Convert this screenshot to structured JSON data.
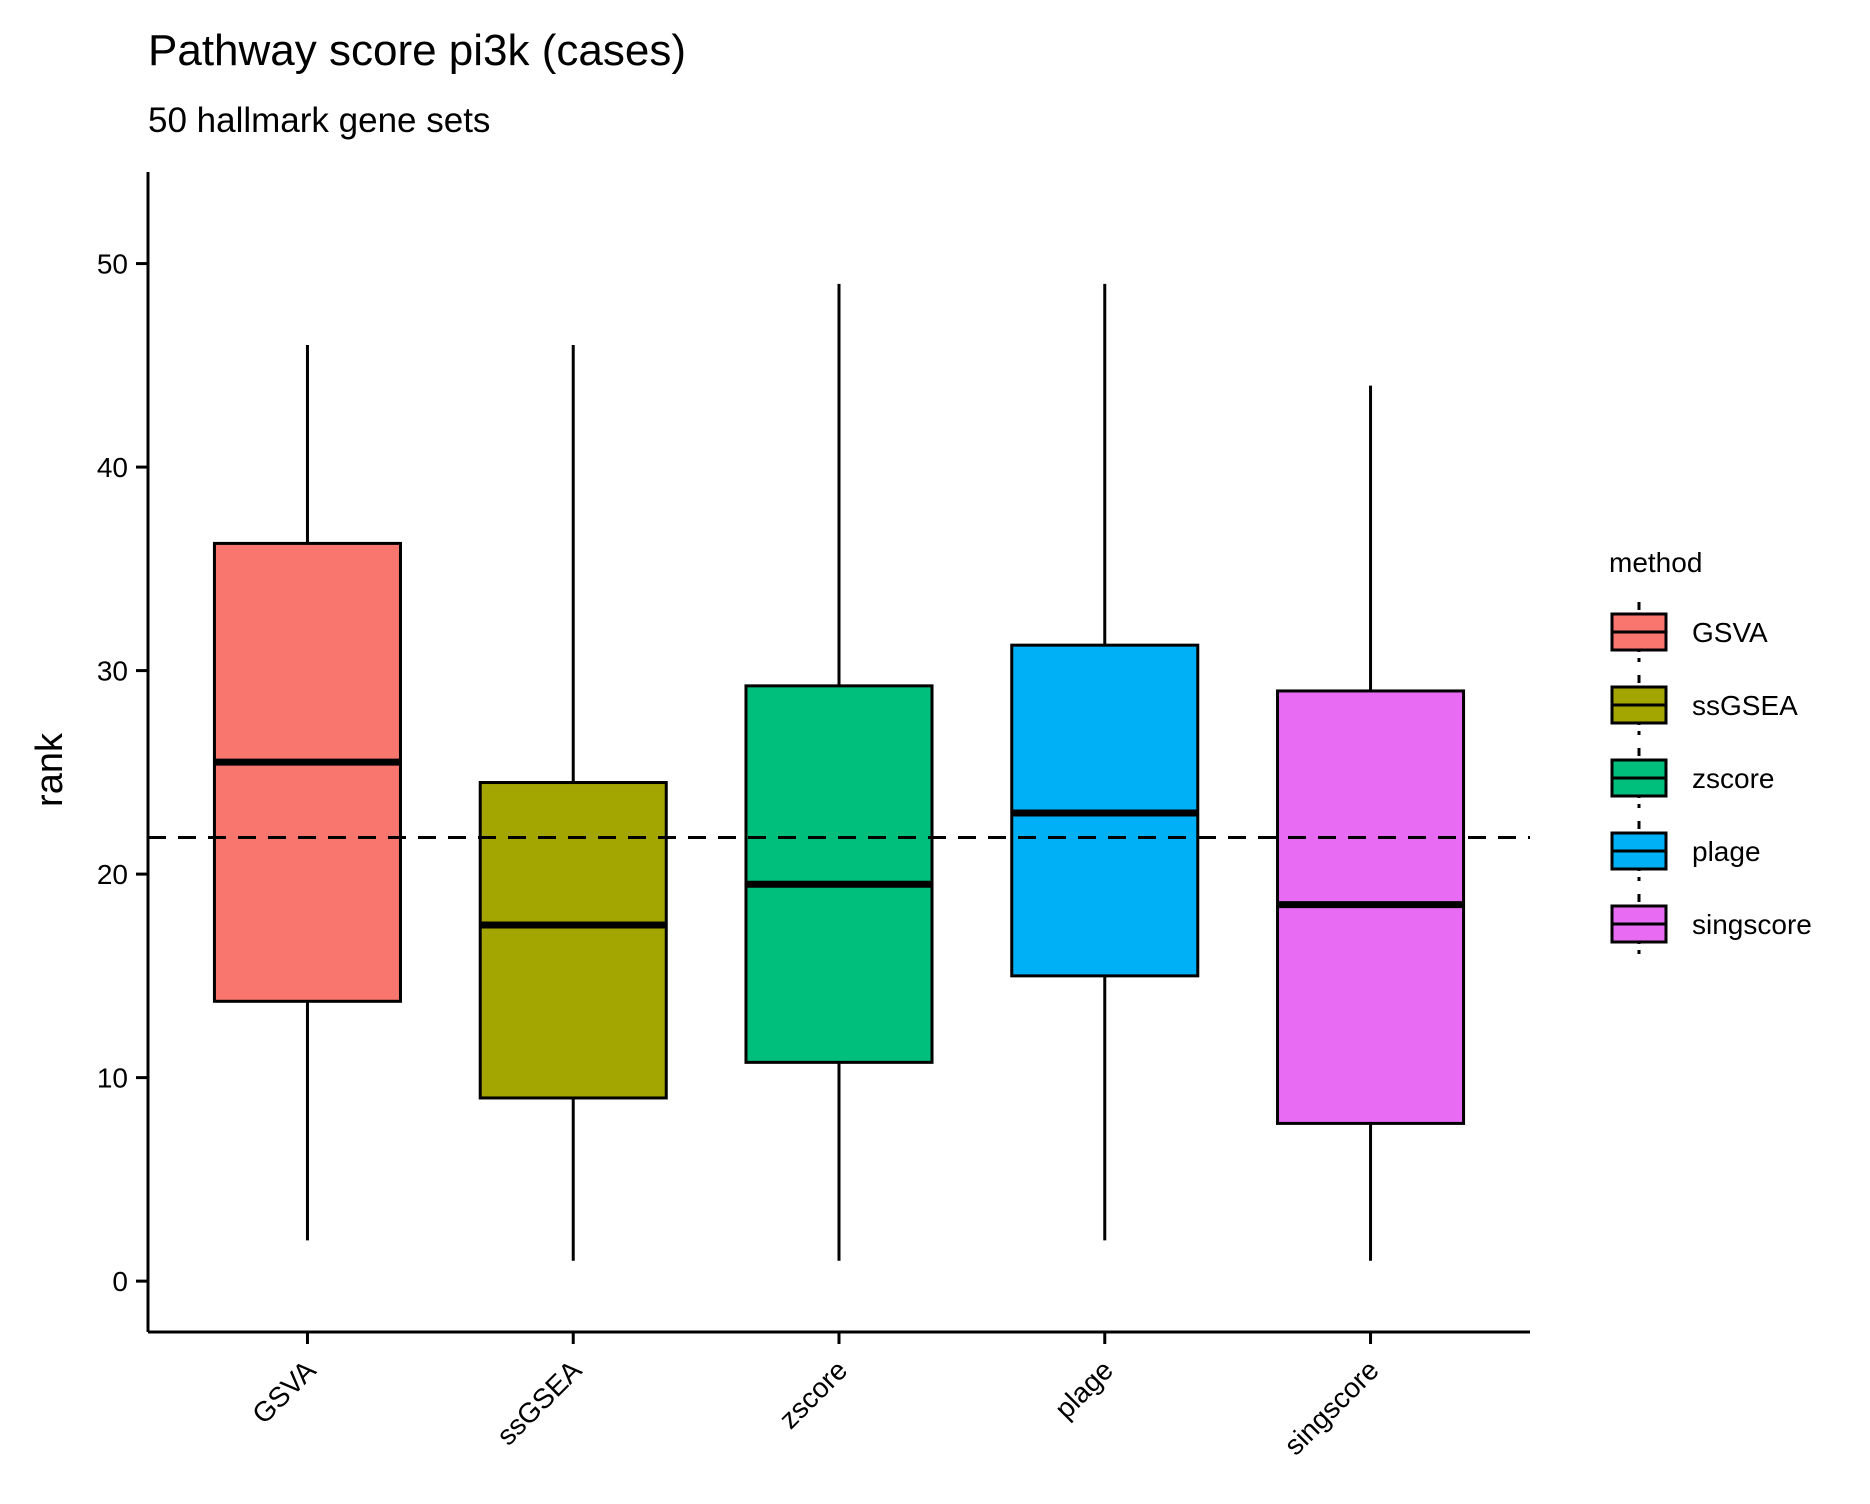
{
  "chart_data": {
    "type": "boxplot",
    "title": "Pathway score pi3k (cases)",
    "subtitle": "50 hallmark gene sets",
    "ylabel": "rank",
    "xlabel": "",
    "ylim": [
      -2.5,
      54.5
    ],
    "yticks": [
      0,
      10,
      20,
      30,
      40,
      50
    ],
    "grid": false,
    "reference_line": {
      "y": 21.8,
      "style": "dashed"
    },
    "legend": {
      "title": "method",
      "position": "right",
      "entries": [
        "GSVA",
        "ssGSEA",
        "zscore",
        "plage",
        "singscore"
      ]
    },
    "categories": [
      "GSVA",
      "ssGSEA",
      "zscore",
      "plage",
      "singscore"
    ],
    "boxes": [
      {
        "name": "GSVA",
        "min": 2,
        "q1": 13.75,
        "median": 25.5,
        "q3": 36.25,
        "max": 46,
        "color": "#F8766D"
      },
      {
        "name": "ssGSEA",
        "min": 1,
        "q1": 9,
        "median": 17.5,
        "q3": 24.5,
        "max": 46,
        "color": "#A3A500"
      },
      {
        "name": "zscore",
        "min": 1,
        "q1": 10.75,
        "median": 19.5,
        "q3": 29.25,
        "max": 49,
        "color": "#00BF7D"
      },
      {
        "name": "plage",
        "min": 2,
        "q1": 15,
        "median": 23,
        "q3": 31.25,
        "max": 49,
        "color": "#00B0F6"
      },
      {
        "name": "singscore",
        "min": 1,
        "q1": 7.75,
        "median": 18.5,
        "q3": 29,
        "max": 44,
        "color": "#E76BF3"
      }
    ]
  }
}
